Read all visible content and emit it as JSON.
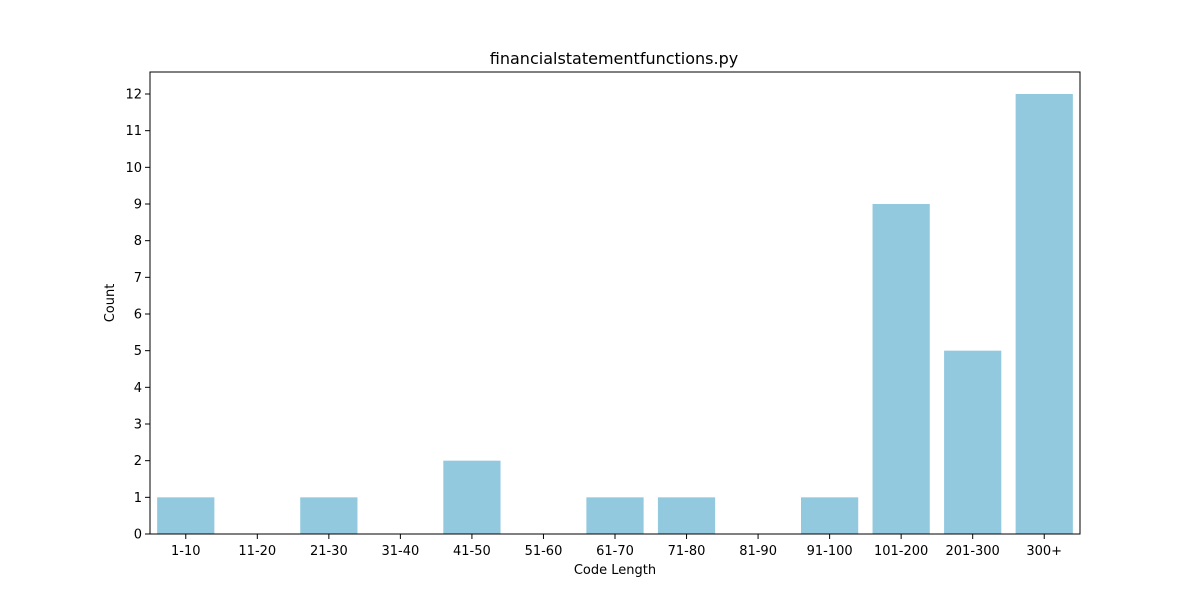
{
  "chart_data": {
    "type": "bar",
    "title": "financialstatementfunctions.py",
    "xlabel": "Code Length",
    "ylabel": "Count",
    "categories": [
      "1-10",
      "11-20",
      "21-30",
      "31-40",
      "41-50",
      "51-60",
      "61-70",
      "71-80",
      "81-90",
      "91-100",
      "101-200",
      "201-300",
      "300+"
    ],
    "values": [
      1,
      0,
      1,
      0,
      2,
      0,
      1,
      1,
      0,
      1,
      9,
      5,
      12
    ],
    "ylim": [
      0,
      12.6
    ],
    "yticks": [
      0,
      1,
      2,
      3,
      4,
      5,
      6,
      7,
      8,
      9,
      10,
      11,
      12
    ],
    "grid": false,
    "bar_color": "#92c9df"
  }
}
